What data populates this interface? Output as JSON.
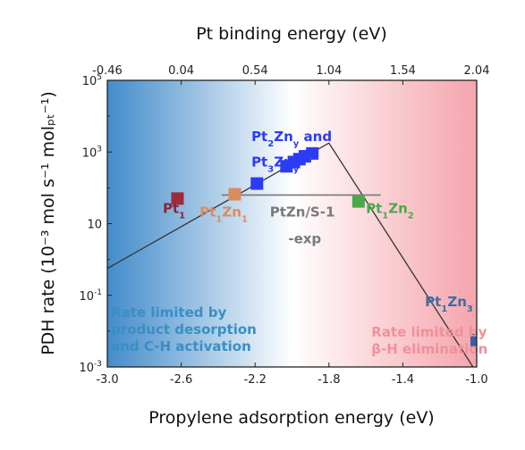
{
  "chart_data": {
    "type": "scatter",
    "title": "",
    "xlabel": "Propylene adsorption energy (eV)",
    "ylabel": "PDH rate (10⁻³ mol s⁻¹ molₚₜ⁻¹)",
    "x2label": "Pt binding energy (eV)",
    "xlim": [
      -3.0,
      -1.0
    ],
    "ylim_log10": [
      -3,
      5
    ],
    "y_scale": "log",
    "x_ticks": [
      "-3.0",
      "-2.6",
      "-2.2",
      "-1.8",
      "-1.4",
      "-1.0"
    ],
    "x_tick_values": [
      -3.0,
      -2.6,
      -2.2,
      -1.8,
      -1.4,
      -1.0
    ],
    "x2_ticks": [
      "-0.46",
      "0.04",
      "0.54",
      "1.04",
      "1.54",
      "2.04"
    ],
    "y_ticks": [
      {
        "base": "10",
        "exp": "5",
        "log10": 5
      },
      {
        "base": "10",
        "exp": "3",
        "log10": 3
      },
      {
        "base": "10",
        "exp": "",
        "log10": 1
      },
      {
        "base": "10",
        "exp": "-1",
        "log10": -1
      },
      {
        "base": "10",
        "exp": "-3",
        "log10": -3
      }
    ],
    "background_gradient": {
      "left": "#3a86c8",
      "middle": "#ffffff",
      "right": "#f4a0a8"
    },
    "volcano_line": {
      "color": "#333333",
      "points": [
        {
          "x": -3.0,
          "y": -0.25
        },
        {
          "x": -1.8,
          "y": 3.25
        },
        {
          "x": -1.02,
          "y": -3.0
        }
      ]
    },
    "exp_line": {
      "color": "#777777",
      "x": [
        -2.38,
        -1.52
      ],
      "y": 1.8
    },
    "series": [
      {
        "color": "#9e2a3c",
        "points": [
          {
            "x": -2.62,
            "y": 1.7
          }
        ]
      },
      {
        "color": "#d98d5f",
        "points": [
          {
            "x": -2.31,
            "y": 1.82
          }
        ]
      },
      {
        "color": "#2b3cf5",
        "points": [
          {
            "x": -2.19,
            "y": 2.12
          },
          {
            "x": -2.03,
            "y": 2.6
          },
          {
            "x": -1.99,
            "y": 2.72
          },
          {
            "x": -1.96,
            "y": 2.8
          },
          {
            "x": -1.93,
            "y": 2.88
          },
          {
            "x": -1.89,
            "y": 2.96
          }
        ]
      },
      {
        "color": "#4aaa4a",
        "points": [
          {
            "x": -1.64,
            "y": 1.62
          }
        ]
      },
      {
        "color": "#3360a0",
        "points": [
          {
            "x": -1.0,
            "y": -2.25
          }
        ]
      }
    ],
    "labels": [
      {
        "text": "Pt",
        "sub": "1",
        "after": "",
        "sub2": "",
        "color": "#8b2535",
        "x": -2.7,
        "y": 1.3
      },
      {
        "text": "Pt",
        "sub": "1",
        "after": "Zn",
        "sub2": "1",
        "color": "#d98d5f",
        "x": -2.5,
        "y": 1.2
      },
      {
        "text": "Pt",
        "sub": "2",
        "after": "Zn",
        "sub2": "y",
        "extra": " and",
        "color": "#2b3cf5",
        "x": -2.22,
        "y": 3.3
      },
      {
        "text": "Pt",
        "sub": "3",
        "after": "Zn",
        "sub2": "y",
        "color": "#2b3cf5",
        "x": -2.22,
        "y": 2.6
      },
      {
        "text": "PtZn/S-1",
        "sub": "",
        "after": "",
        "sub2": "",
        "color": "#7a7a7a",
        "x": -2.12,
        "y": 1.2
      },
      {
        "text": "-exp",
        "sub": "",
        "after": "",
        "sub2": "",
        "color": "#7a7a7a",
        "x": -2.02,
        "y": 0.45
      },
      {
        "text": "Pt",
        "sub": "1",
        "after": "Zn",
        "sub2": "2",
        "color": "#4aaa4a",
        "x": -1.6,
        "y": 1.3
      },
      {
        "text": "Pt",
        "sub": "1",
        "after": "Zn",
        "sub2": "3",
        "color": "#3a6ea8",
        "x": -1.28,
        "y": -1.3
      }
    ],
    "annotations": [
      {
        "lines": [
          "Rate limited by",
          "product desorption",
          "and C-H activation"
        ],
        "color": "#3a8ec4",
        "x": -2.98,
        "y": -1.6
      },
      {
        "lines": [
          "Rate limited by",
          "β-H elimination"
        ],
        "color": "#f0909a",
        "x": -1.57,
        "y": -2.15
      }
    ]
  }
}
